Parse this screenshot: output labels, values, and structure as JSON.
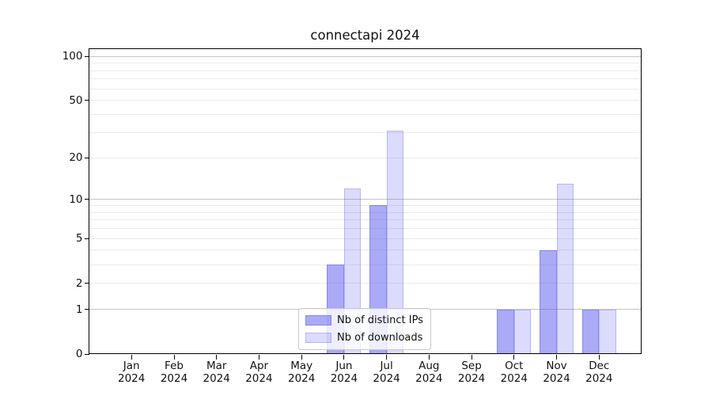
{
  "chart_data": {
    "type": "bar",
    "title": "connectapi 2024",
    "categories": [
      "Jan 2024",
      "Feb 2024",
      "Mar 2024",
      "Apr 2024",
      "May 2024",
      "Jun 2024",
      "Jul 2024",
      "Aug 2024",
      "Sep 2024",
      "Oct 2024",
      "Nov 2024",
      "Dec 2024"
    ],
    "series": [
      {
        "name": "Nb of distinct IPs",
        "color_hex": "#aaaaf3",
        "fill": "rgba(85,85,240,0.50)",
        "edge": "rgba(75,75,225,0.35)",
        "values": [
          0,
          0,
          0,
          0,
          0,
          3,
          9,
          0,
          0,
          1,
          4,
          1
        ]
      },
      {
        "name": "Nb of downloads",
        "color_hex": "#dedef9",
        "fill": "rgba(85,85,240,0.21)",
        "edge": "rgba(85,85,240,0.28)",
        "values": [
          0,
          0,
          0,
          0,
          0,
          12,
          31,
          0,
          0,
          1,
          13,
          1
        ]
      }
    ],
    "xlabel": "",
    "ylabel": "",
    "yscale": "log1p",
    "ylim": [
      0,
      113
    ],
    "yticks": [
      0,
      1,
      2,
      5,
      10,
      20,
      50,
      100
    ],
    "major_gridlines": [
      1,
      10,
      100
    ],
    "minor_gridlines": [
      2,
      3,
      4,
      5,
      6,
      7,
      8,
      9,
      20,
      30,
      40,
      50,
      60,
      70,
      80,
      90
    ],
    "grid": "on",
    "gridline_major_color": "#c4c4c4",
    "gridline_minor_color": "#ebebeb",
    "legend": {
      "position": "lower center"
    }
  }
}
